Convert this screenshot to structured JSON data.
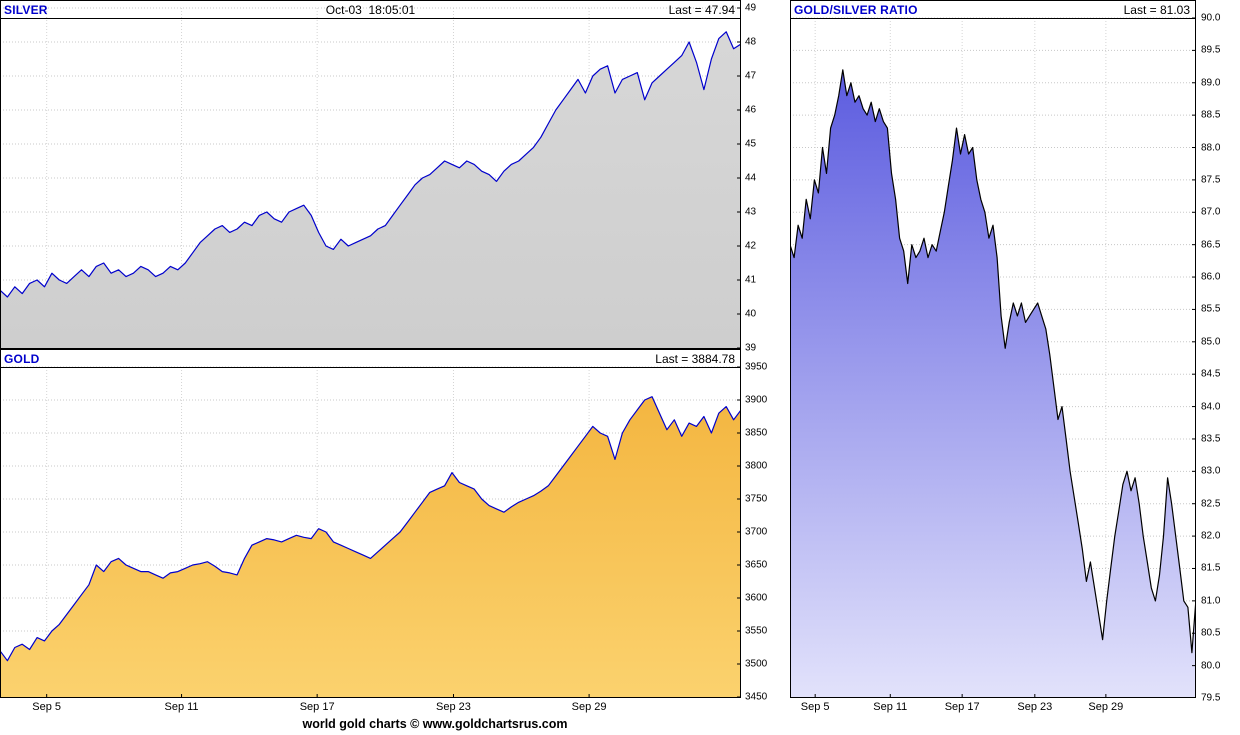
{
  "theme": {
    "background": "#ffffff",
    "title_color": "#0000cc",
    "text_color": "#000000",
    "grid_color": "#c8c8c8",
    "border_color": "#000000"
  },
  "footer": {
    "credit": "world gold charts © www.goldchartsrus.com"
  },
  "chart_data": [
    {
      "id": "silver",
      "type": "area",
      "title": "SILVER",
      "timestamp": "Oct-03  18:05:01",
      "last_label": "Last = 47.94",
      "last_value": 47.94,
      "ylim": [
        39,
        49
      ],
      "yticks": [
        "49",
        "48",
        "47",
        "46",
        "45",
        "44",
        "43",
        "42",
        "41",
        "40",
        "39"
      ],
      "xticks": [
        {
          "label": "Sep 5",
          "pos": 0.063
        },
        {
          "label": "Sep 11",
          "pos": 0.245
        },
        {
          "label": "Sep 17",
          "pos": 0.428
        },
        {
          "label": "Sep 23",
          "pos": 0.612
        },
        {
          "label": "Sep 29",
          "pos": 0.795
        }
      ],
      "line_color": "#0000cc",
      "fill_top": "#d8d8d8",
      "fill_bottom": "#cecece",
      "values": [
        40.7,
        40.5,
        40.8,
        40.6,
        40.9,
        41.0,
        40.8,
        41.2,
        41.0,
        40.9,
        41.1,
        41.3,
        41.1,
        41.4,
        41.5,
        41.2,
        41.3,
        41.1,
        41.2,
        41.4,
        41.3,
        41.1,
        41.2,
        41.4,
        41.3,
        41.5,
        41.8,
        42.1,
        42.3,
        42.5,
        42.6,
        42.4,
        42.5,
        42.7,
        42.6,
        42.9,
        43.0,
        42.8,
        42.7,
        43.0,
        43.1,
        43.2,
        42.9,
        42.4,
        42.0,
        41.9,
        42.2,
        42.0,
        42.1,
        42.2,
        42.3,
        42.5,
        42.6,
        42.9,
        43.2,
        43.5,
        43.8,
        44.0,
        44.1,
        44.3,
        44.5,
        44.4,
        44.3,
        44.5,
        44.4,
        44.2,
        44.1,
        43.9,
        44.2,
        44.4,
        44.5,
        44.7,
        44.9,
        45.2,
        45.6,
        46.0,
        46.3,
        46.6,
        46.9,
        46.5,
        47.0,
        47.2,
        47.3,
        46.5,
        46.9,
        47.0,
        47.1,
        46.3,
        46.8,
        47.0,
        47.2,
        47.4,
        47.6,
        48.0,
        47.4,
        46.6,
        47.5,
        48.1,
        48.3,
        47.8,
        47.94
      ]
    },
    {
      "id": "gold",
      "type": "area",
      "title": "GOLD",
      "last_label": "Last = 3884.78",
      "last_value": 3884.78,
      "ylim": [
        3450,
        3950
      ],
      "yticks": [
        "3950",
        "3900",
        "3850",
        "3800",
        "3750",
        "3700",
        "3650",
        "3600",
        "3550",
        "3500",
        "3450"
      ],
      "xticks": [
        {
          "label": "Sep 5",
          "pos": 0.063
        },
        {
          "label": "Sep 11",
          "pos": 0.245
        },
        {
          "label": "Sep 17",
          "pos": 0.428
        },
        {
          "label": "Sep 23",
          "pos": 0.612
        },
        {
          "label": "Sep 29",
          "pos": 0.795
        }
      ],
      "line_color": "#0000cc",
      "fill_top": "#f3b33c",
      "fill_bottom": "#fbd26e",
      "values": [
        3520,
        3505,
        3525,
        3530,
        3522,
        3540,
        3535,
        3550,
        3560,
        3575,
        3590,
        3605,
        3620,
        3650,
        3640,
        3655,
        3660,
        3650,
        3645,
        3640,
        3640,
        3635,
        3630,
        3638,
        3640,
        3645,
        3650,
        3652,
        3655,
        3648,
        3640,
        3638,
        3635,
        3660,
        3680,
        3685,
        3690,
        3688,
        3685,
        3690,
        3695,
        3692,
        3690,
        3705,
        3700,
        3685,
        3680,
        3675,
        3670,
        3665,
        3660,
        3670,
        3680,
        3690,
        3700,
        3715,
        3730,
        3745,
        3760,
        3765,
        3770,
        3790,
        3775,
        3770,
        3765,
        3750,
        3740,
        3735,
        3730,
        3738,
        3745,
        3750,
        3755,
        3762,
        3770,
        3785,
        3800,
        3815,
        3830,
        3845,
        3860,
        3850,
        3845,
        3810,
        3850,
        3870,
        3885,
        3900,
        3905,
        3880,
        3855,
        3870,
        3845,
        3865,
        3860,
        3875,
        3850,
        3880,
        3890,
        3870,
        3884.78
      ]
    },
    {
      "id": "ratio",
      "type": "area",
      "title": "GOLD/SILVER RATIO",
      "last_label": "Last = 81.03",
      "last_value": 81.03,
      "ylim": [
        79.5,
        90.0
      ],
      "yticks": [
        "90.0",
        "89.5",
        "89.0",
        "88.5",
        "88.0",
        "87.5",
        "87.0",
        "86.5",
        "86.0",
        "85.5",
        "85.0",
        "84.5",
        "84.0",
        "83.5",
        "83.0",
        "82.5",
        "82.0",
        "81.5",
        "81.0",
        "80.5",
        "80.0",
        "79.5"
      ],
      "xticks": [
        {
          "label": "Sep 5",
          "pos": 0.062
        },
        {
          "label": "Sep 11",
          "pos": 0.247
        },
        {
          "label": "Sep 17",
          "pos": 0.424
        },
        {
          "label": "Sep 23",
          "pos": 0.603
        },
        {
          "label": "Sep 29",
          "pos": 0.778
        }
      ],
      "line_color": "#000000",
      "fill_top": "#5151dd",
      "fill_bottom": "#e2e2fb",
      "values": [
        86.5,
        86.3,
        86.8,
        86.6,
        87.2,
        86.9,
        87.5,
        87.3,
        88.0,
        87.6,
        88.3,
        88.5,
        88.8,
        89.2,
        88.8,
        89.0,
        88.7,
        88.8,
        88.6,
        88.5,
        88.7,
        88.4,
        88.6,
        88.4,
        88.3,
        87.6,
        87.2,
        86.6,
        86.4,
        85.9,
        86.5,
        86.3,
        86.4,
        86.6,
        86.3,
        86.5,
        86.4,
        86.7,
        87.0,
        87.4,
        87.8,
        88.3,
        87.9,
        88.2,
        87.9,
        88.0,
        87.5,
        87.2,
        87.0,
        86.6,
        86.8,
        86.3,
        85.4,
        84.9,
        85.3,
        85.6,
        85.4,
        85.6,
        85.3,
        85.4,
        85.5,
        85.6,
        85.4,
        85.2,
        84.8,
        84.3,
        83.8,
        84.0,
        83.5,
        83.0,
        82.6,
        82.2,
        81.8,
        81.3,
        81.6,
        81.2,
        80.8,
        80.4,
        81.0,
        81.5,
        82.0,
        82.4,
        82.8,
        83.0,
        82.7,
        82.9,
        82.5,
        82.0,
        81.6,
        81.2,
        81.0,
        81.4,
        82.0,
        82.9,
        82.5,
        82.0,
        81.5,
        81.0,
        80.9,
        80.2,
        81.03
      ]
    }
  ]
}
